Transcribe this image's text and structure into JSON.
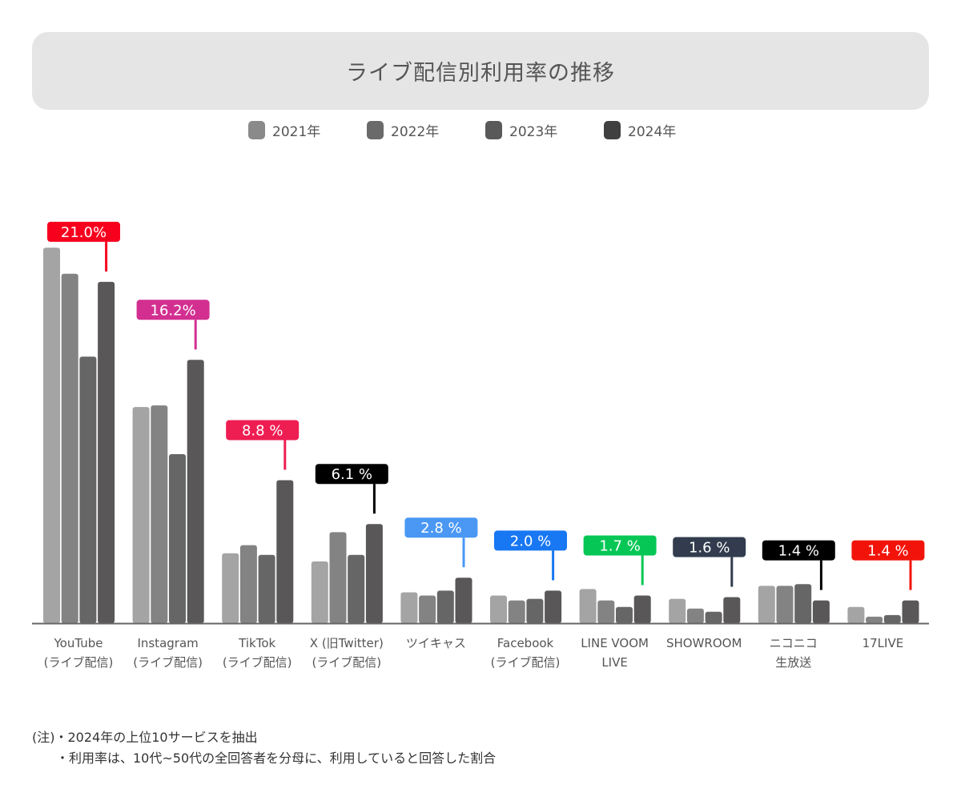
{
  "title": "ライブ配信別利用率の推移",
  "legend": [
    {
      "label": "2021年",
      "color": "#8a8a8a"
    },
    {
      "label": "2022年",
      "color": "#6a6a6a"
    },
    {
      "label": "2023年",
      "color": "#595959"
    },
    {
      "label": "2024年",
      "color": "#404040"
    }
  ],
  "chart_data": {
    "type": "bar",
    "title": "ライブ配信別利用率の推移",
    "xlabel": "",
    "ylabel": "",
    "unit": "%",
    "ylim": [
      0,
      24
    ],
    "grid": false,
    "legend_position": "top",
    "categories": [
      [
        "YouTube",
        "(ライブ配信)"
      ],
      [
        "Instagram",
        "(ライブ配信)"
      ],
      [
        "TikTok",
        "(ライブ配信)"
      ],
      [
        "X (旧Twitter)",
        "(ライブ配信)"
      ],
      [
        "ツイキャス"
      ],
      [
        "Facebook",
        "(ライブ配信)"
      ],
      [
        "LINE VOOM",
        "LIVE"
      ],
      [
        "SHOWROOM"
      ],
      [
        "ニコニコ",
        "生放送"
      ],
      [
        "17LIVE"
      ]
    ],
    "series": [
      {
        "name": "2021年",
        "color": "#a4a4a4",
        "values": [
          23.1,
          13.3,
          4.3,
          3.8,
          1.9,
          1.7,
          2.1,
          1.5,
          2.3,
          1.0
        ]
      },
      {
        "name": "2022年",
        "color": "#838383",
        "values": [
          21.5,
          13.4,
          4.8,
          5.6,
          1.7,
          1.4,
          1.4,
          0.9,
          2.3,
          0.4
        ]
      },
      {
        "name": "2023年",
        "color": "#666666",
        "values": [
          16.4,
          10.4,
          4.2,
          4.2,
          2.0,
          1.5,
          1.0,
          0.7,
          2.4,
          0.5
        ]
      },
      {
        "name": "2024年",
        "color": "#595757",
        "values": [
          21.0,
          16.2,
          8.8,
          6.1,
          2.8,
          2.0,
          1.7,
          1.6,
          1.4,
          1.4
        ]
      }
    ],
    "data_labels": [
      {
        "text": "21.0%",
        "color": "#f7001e"
      },
      {
        "text": "16.2%",
        "color": "#d22f91"
      },
      {
        "text": "8.8 %",
        "color": "#ee1d52"
      },
      {
        "text": "6.1 %",
        "color": "#000000"
      },
      {
        "text": "2.8 %",
        "color": "#4a98f4"
      },
      {
        "text": "2.0 %",
        "color": "#1877f2"
      },
      {
        "text": "1.7 %",
        "color": "#06c755"
      },
      {
        "text": "1.6 %",
        "color": "#323c4e"
      },
      {
        "text": "1.4 %",
        "color": "#000000"
      },
      {
        "text": "1.4 %",
        "color": "#f2140a"
      }
    ]
  },
  "notes": {
    "line1": "(注)・2024年の上位10サービスを抽出",
    "line2": "・利用率は、10代~50代の全回答者を分母に、利用していると回答した割合"
  }
}
